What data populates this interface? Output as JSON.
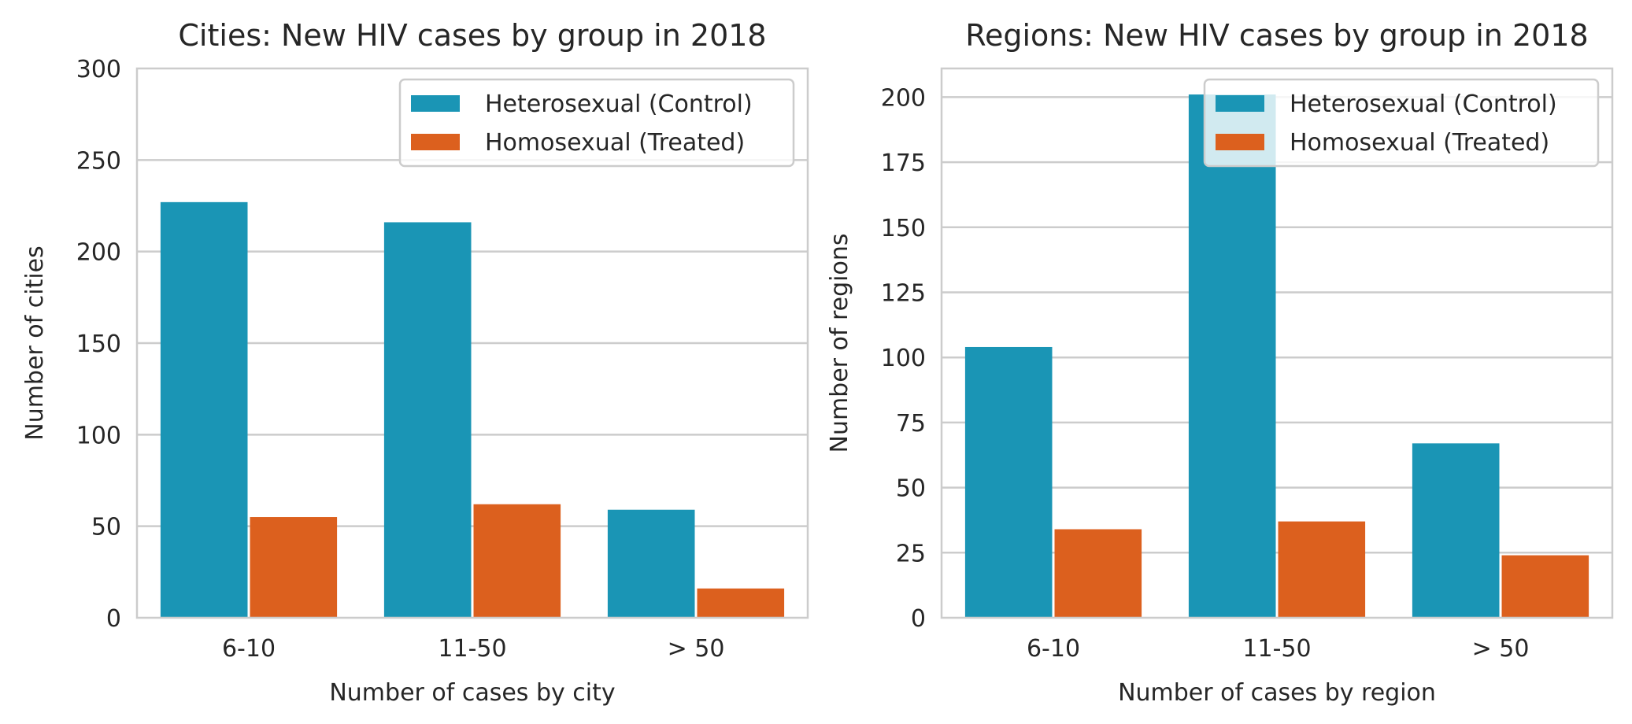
{
  "colors": {
    "control": "#1a95b5",
    "treated": "#dc601e"
  },
  "chart_data": [
    {
      "type": "bar",
      "title": "Cities: New HIV cases by group in 2018",
      "xlabel": "Number of cases by city",
      "ylabel": "Number of cities",
      "categories": [
        "6-10",
        "11-50",
        "> 50"
      ],
      "series": [
        {
          "name": "Heterosexual (Control)",
          "values": [
            227,
            216,
            59
          ]
        },
        {
          "name": "Homosexual (Treated)",
          "values": [
            55,
            62,
            16
          ]
        }
      ],
      "ylim": [
        0,
        300
      ],
      "yticks": [
        0,
        50,
        100,
        150,
        200,
        250,
        300
      ],
      "grid": true,
      "legend": "top-right"
    },
    {
      "type": "bar",
      "title": "Regions: New HIV cases by group in 2018",
      "xlabel": "Number of cases by region",
      "ylabel": "Number of regions",
      "categories": [
        "6-10",
        "11-50",
        "> 50"
      ],
      "series": [
        {
          "name": "Heterosexual (Control)",
          "values": [
            104,
            201,
            67
          ]
        },
        {
          "name": "Homosexual (Treated)",
          "values": [
            34,
            37,
            24
          ]
        }
      ],
      "ylim": [
        0,
        211
      ],
      "yticks": [
        0,
        25,
        50,
        75,
        100,
        125,
        150,
        175,
        200
      ],
      "grid": true,
      "legend": "top-right"
    }
  ]
}
